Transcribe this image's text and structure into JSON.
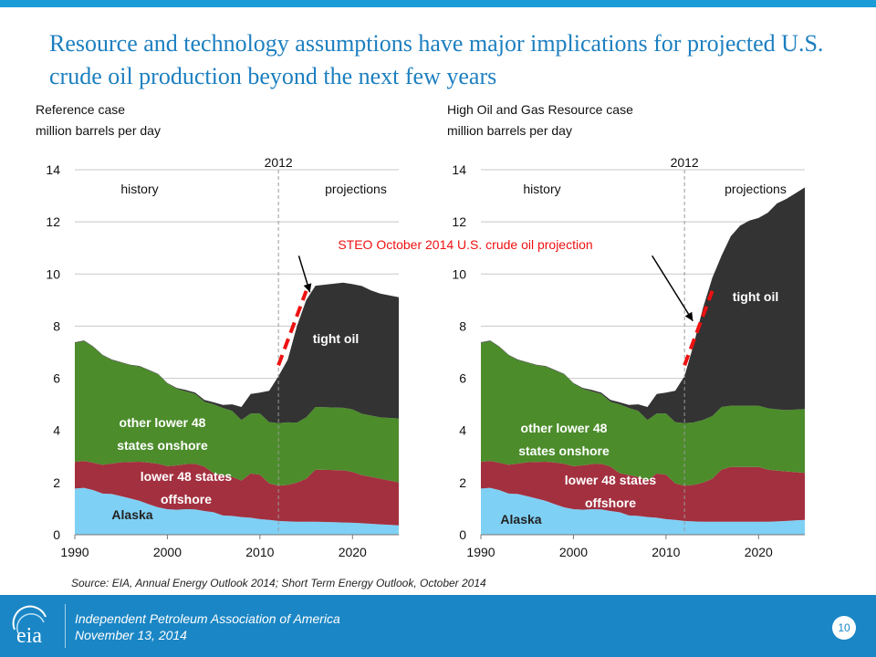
{
  "slide": {
    "title": "Resource and technology assumptions have major implications for projected U.S. crude oil production beyond the next few years",
    "source": "Source:  EIA, Annual Energy Outlook 2014; Short Term Energy Outlook, October 2014",
    "footer": {
      "line1": "Independent Petroleum Association of America",
      "line2": "November 13, 2014",
      "page": "10",
      "logo_icon": "eia-logo-icon",
      "logo_text": "eia"
    }
  },
  "steo_label": "STEO October 2014 U.S. crude oil projection",
  "colors": {
    "alaska": "#7fd0f5",
    "offshore": "#a3303f",
    "onshore": "#4c8c2b",
    "tight": "#333333",
    "steo": "#ee1111",
    "title": "#1c7fc0",
    "accent": "#1a86c5"
  },
  "chart_data": [
    {
      "type": "area",
      "stacked": true,
      "title": "Reference case",
      "subtitle": "million barrels per day",
      "xlim": [
        1990,
        2025
      ],
      "ylim": [
        0,
        14
      ],
      "x_ticks": [
        1990,
        2000,
        2010,
        2020
      ],
      "y_ticks": [
        0,
        2,
        4,
        6,
        8,
        10,
        12,
        14
      ],
      "grid": true,
      "divider": {
        "x": 2012,
        "label": "2012"
      },
      "region_labels": [
        "history",
        "projections"
      ],
      "x": [
        1990,
        1991,
        1992,
        1993,
        1994,
        1995,
        1996,
        1997,
        1998,
        1999,
        2000,
        2001,
        2002,
        2003,
        2004,
        2005,
        2006,
        2007,
        2008,
        2009,
        2010,
        2011,
        2012,
        2013,
        2014,
        2015,
        2016,
        2017,
        2018,
        2019,
        2020,
        2021,
        2022,
        2023,
        2024,
        2025
      ],
      "series": [
        {
          "name": "Alaska",
          "color_key": "alaska",
          "values": [
            1.77,
            1.8,
            1.71,
            1.58,
            1.56,
            1.48,
            1.39,
            1.3,
            1.17,
            1.05,
            0.98,
            0.96,
            0.98,
            0.97,
            0.91,
            0.86,
            0.74,
            0.72,
            0.68,
            0.65,
            0.6,
            0.57,
            0.53,
            0.51,
            0.5,
            0.5,
            0.5,
            0.49,
            0.48,
            0.47,
            0.46,
            0.44,
            0.42,
            0.4,
            0.38,
            0.36
          ]
        },
        {
          "name": "lower 48 states offshore",
          "color_key": "offshore",
          "values": [
            1.02,
            1.03,
            1.05,
            1.1,
            1.17,
            1.3,
            1.4,
            1.5,
            1.6,
            1.67,
            1.65,
            1.7,
            1.73,
            1.75,
            1.7,
            1.5,
            1.55,
            1.5,
            1.4,
            1.7,
            1.7,
            1.4,
            1.35,
            1.4,
            1.5,
            1.65,
            2.0,
            2.0,
            2.0,
            2.0,
            1.95,
            1.85,
            1.8,
            1.75,
            1.7,
            1.65
          ]
        },
        {
          "name": "other lower 48 states onshore",
          "color_key": "onshore",
          "values": [
            4.57,
            4.6,
            4.44,
            4.2,
            3.97,
            3.82,
            3.71,
            3.65,
            3.53,
            3.43,
            3.17,
            2.94,
            2.79,
            2.68,
            2.49,
            2.64,
            2.57,
            2.53,
            2.32,
            2.3,
            2.35,
            2.35,
            2.4,
            2.4,
            2.3,
            2.35,
            2.4,
            2.4,
            2.4,
            2.4,
            2.4,
            2.35,
            2.35,
            2.35,
            2.4,
            2.45
          ]
        },
        {
          "name": "tight oil",
          "color_key": "tight",
          "values": [
            0.02,
            0.02,
            0.02,
            0.02,
            0.02,
            0.02,
            0.02,
            0.02,
            0.02,
            0.02,
            0.02,
            0.03,
            0.05,
            0.05,
            0.07,
            0.08,
            0.12,
            0.25,
            0.5,
            0.75,
            0.8,
            1.2,
            1.8,
            2.4,
            3.7,
            4.5,
            4.65,
            4.7,
            4.75,
            4.8,
            4.8,
            4.9,
            4.8,
            4.75,
            4.7,
            4.65
          ]
        }
      ],
      "steo_projection": {
        "x": [
          2012,
          2015
        ],
        "y": [
          6.5,
          9.35
        ]
      },
      "steo_arrow": {
        "x": [
          2014.2,
          2015.4
        ],
        "y": [
          10.7,
          9.3
        ]
      }
    },
    {
      "type": "area",
      "stacked": true,
      "title": "High Oil and Gas Resource case",
      "subtitle": "million barrels per day",
      "xlim": [
        1990,
        2025
      ],
      "ylim": [
        0,
        14
      ],
      "x_ticks": [
        1990,
        2000,
        2010,
        2020
      ],
      "y_ticks": [
        0,
        2,
        4,
        6,
        8,
        10,
        12,
        14
      ],
      "grid": true,
      "divider": {
        "x": 2012,
        "label": "2012"
      },
      "region_labels": [
        "history",
        "projections"
      ],
      "x": [
        1990,
        1991,
        1992,
        1993,
        1994,
        1995,
        1996,
        1997,
        1998,
        1999,
        2000,
        2001,
        2002,
        2003,
        2004,
        2005,
        2006,
        2007,
        2008,
        2009,
        2010,
        2011,
        2012,
        2013,
        2014,
        2015,
        2016,
        2017,
        2018,
        2019,
        2020,
        2021,
        2022,
        2023,
        2024,
        2025
      ],
      "series": [
        {
          "name": "Alaska",
          "color_key": "alaska",
          "values": [
            1.77,
            1.8,
            1.71,
            1.58,
            1.56,
            1.48,
            1.39,
            1.3,
            1.17,
            1.05,
            0.98,
            0.96,
            0.98,
            0.97,
            0.91,
            0.86,
            0.74,
            0.72,
            0.68,
            0.65,
            0.6,
            0.57,
            0.53,
            0.51,
            0.5,
            0.5,
            0.5,
            0.5,
            0.5,
            0.5,
            0.5,
            0.5,
            0.51,
            0.53,
            0.55,
            0.57
          ]
        },
        {
          "name": "lower 48 states offshore",
          "color_key": "offshore",
          "values": [
            1.02,
            1.03,
            1.05,
            1.1,
            1.17,
            1.3,
            1.4,
            1.5,
            1.6,
            1.67,
            1.65,
            1.7,
            1.73,
            1.75,
            1.7,
            1.5,
            1.55,
            1.5,
            1.4,
            1.7,
            1.7,
            1.4,
            1.35,
            1.4,
            1.5,
            1.65,
            2.0,
            2.1,
            2.1,
            2.1,
            2.1,
            2.0,
            1.95,
            1.9,
            1.85,
            1.8
          ]
        },
        {
          "name": "other lower 48 states onshore",
          "color_key": "onshore",
          "values": [
            4.57,
            4.6,
            4.44,
            4.2,
            3.97,
            3.82,
            3.71,
            3.65,
            3.53,
            3.43,
            3.17,
            2.94,
            2.79,
            2.68,
            2.49,
            2.64,
            2.57,
            2.53,
            2.32,
            2.3,
            2.35,
            2.35,
            2.4,
            2.4,
            2.4,
            2.4,
            2.4,
            2.35,
            2.35,
            2.35,
            2.35,
            2.35,
            2.35,
            2.35,
            2.4,
            2.45
          ]
        },
        {
          "name": "tight oil",
          "color_key": "tight",
          "values": [
            0.02,
            0.02,
            0.02,
            0.02,
            0.02,
            0.02,
            0.02,
            0.02,
            0.02,
            0.02,
            0.02,
            0.03,
            0.05,
            0.05,
            0.07,
            0.08,
            0.12,
            0.25,
            0.5,
            0.75,
            0.8,
            1.2,
            1.8,
            3.0,
            4.3,
            5.3,
            5.8,
            6.5,
            6.9,
            7.1,
            7.2,
            7.5,
            7.9,
            8.1,
            8.3,
            8.5
          ]
        }
      ],
      "steo_projection": {
        "x": [
          2012,
          2015
        ],
        "y": [
          6.5,
          9.35
        ]
      },
      "steo_arrow": {
        "x": [
          2008.5,
          2012.9
        ],
        "y": [
          10.7,
          8.2
        ]
      }
    }
  ]
}
